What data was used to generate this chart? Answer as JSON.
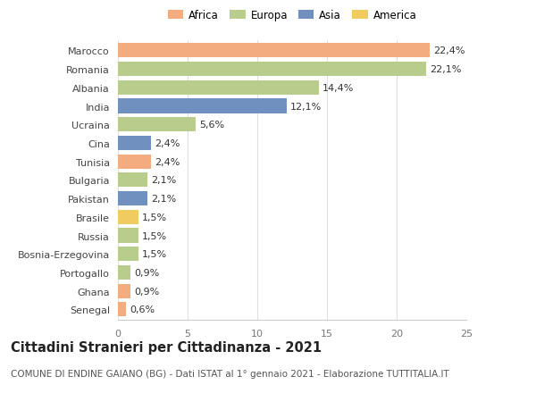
{
  "categories": [
    "Marocco",
    "Romania",
    "Albania",
    "India",
    "Ucraina",
    "Cina",
    "Tunisia",
    "Bulgaria",
    "Pakistan",
    "Brasile",
    "Russia",
    "Bosnia-Erzegovina",
    "Portogallo",
    "Ghana",
    "Senegal"
  ],
  "values": [
    22.4,
    22.1,
    14.4,
    12.1,
    5.6,
    2.4,
    2.4,
    2.1,
    2.1,
    1.5,
    1.5,
    1.5,
    0.9,
    0.9,
    0.6
  ],
  "labels": [
    "22,4%",
    "22,1%",
    "14,4%",
    "12,1%",
    "5,6%",
    "2,4%",
    "2,4%",
    "2,1%",
    "2,1%",
    "1,5%",
    "1,5%",
    "1,5%",
    "0,9%",
    "0,9%",
    "0,6%"
  ],
  "continents": [
    "Africa",
    "Europa",
    "Europa",
    "Asia",
    "Europa",
    "Asia",
    "Africa",
    "Europa",
    "Asia",
    "America",
    "Europa",
    "Europa",
    "Europa",
    "Africa",
    "Africa"
  ],
  "colors": {
    "Africa": "#F2AC80",
    "Europa": "#B8CC8C",
    "Asia": "#7090C0",
    "America": "#F0CC60"
  },
  "legend_order": [
    "Africa",
    "Europa",
    "Asia",
    "America"
  ],
  "xlim": [
    0,
    25
  ],
  "xticks": [
    0,
    5,
    10,
    15,
    20,
    25
  ],
  "title": "Cittadini Stranieri per Cittadinanza - 2021",
  "subtitle": "COMUNE DI ENDINE GAIANO (BG) - Dati ISTAT al 1° gennaio 2021 - Elaborazione TUTTITALIA.IT",
  "background_color": "#ffffff",
  "grid_color": "#e0e0e0",
  "bar_height": 0.78,
  "label_fontsize": 8,
  "tick_fontsize": 8,
  "title_fontsize": 10.5,
  "subtitle_fontsize": 7.5
}
